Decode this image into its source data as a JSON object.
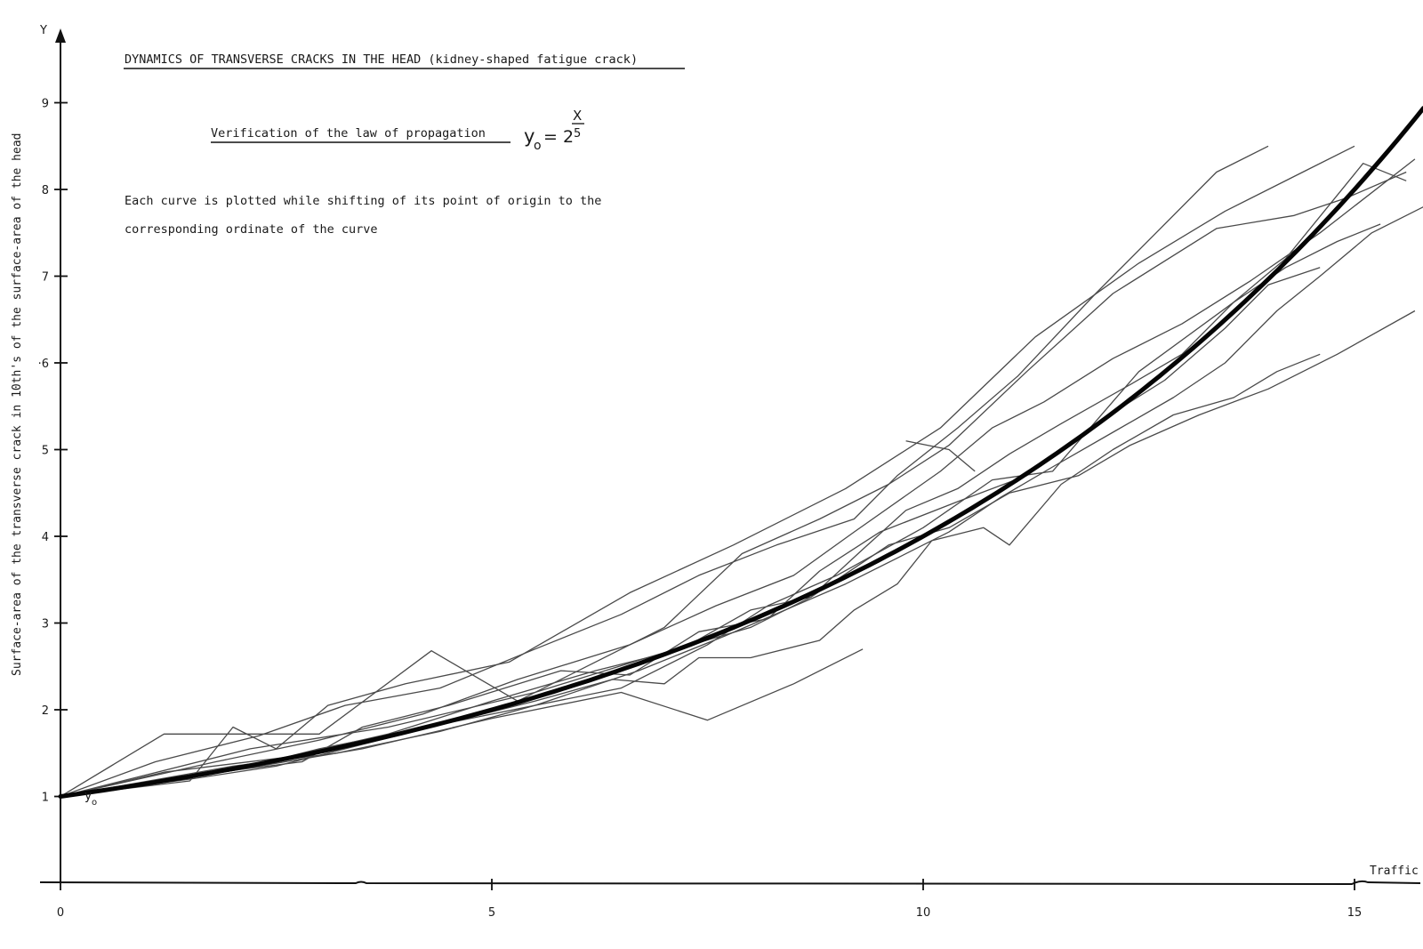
{
  "chart_data": {
    "type": "line",
    "title": "DYNAMICS OF TRANSVERSE CRACKS IN THE HEAD (kidney-shaped fatigue crack)",
    "subtitle": "Verification of the law of propagation",
    "formula": {
      "base": "y",
      "sub": "o",
      "eq": "= 2",
      "exp_num": "X",
      "exp_den": "5"
    },
    "note_lines": [
      "Each curve is plotted while shifting of its point of origin to the",
      "corresponding ordinate of the curve"
    ],
    "ylabel": "Surface-area of the transverse crack in 10th's of the surface-area of the head",
    "yaxis_letter": "Y",
    "xlabel": "Traffic",
    "origin_label": {
      "base": "y",
      "sub": "o"
    },
    "xlim": [
      0,
      15.8
    ],
    "ylim": [
      0,
      9.8
    ],
    "x_ticks": [
      0,
      5,
      10,
      15
    ],
    "x_tick_labels": [
      "0",
      "5",
      "10",
      "15"
    ],
    "y_ticks": [
      1,
      2,
      3,
      4,
      5,
      6,
      7,
      8,
      9
    ],
    "y_tick_labels": [
      "1",
      "2",
      "3",
      "4",
      "5",
      "·6",
      "7",
      "8",
      "9"
    ],
    "grid": false,
    "legend": "none",
    "law": {
      "formula": "y = 2^(x/5)",
      "x_range": [
        0,
        15.8
      ]
    },
    "series": [
      {
        "points": [
          [
            0,
            1
          ],
          [
            1.2,
            1.72
          ],
          [
            3,
            1.72
          ],
          [
            4.3,
            2.68
          ],
          [
            4.9,
            2.33
          ],
          [
            5.3,
            2.1
          ],
          [
            6.2,
            2.55
          ],
          [
            7,
            2.95
          ],
          [
            7.9,
            3.8
          ],
          [
            8.8,
            4.2
          ],
          [
            9.6,
            4.6
          ],
          [
            10.3,
            5.05
          ],
          [
            11.2,
            5.9
          ],
          [
            12.2,
            6.8
          ],
          [
            13.4,
            7.55
          ],
          [
            14.3,
            7.7
          ],
          [
            14.9,
            7.9
          ],
          [
            15.6,
            8.2
          ]
        ]
      },
      {
        "points": [
          [
            0,
            1
          ],
          [
            1.5,
            1.18
          ],
          [
            2,
            1.8
          ],
          [
            2.5,
            1.55
          ],
          [
            3.1,
            2.05
          ],
          [
            4,
            2.3
          ],
          [
            5.2,
            2.55
          ],
          [
            6.6,
            3.35
          ],
          [
            7.8,
            3.9
          ],
          [
            9.1,
            4.55
          ],
          [
            10.2,
            5.25
          ],
          [
            11.3,
            6.3
          ],
          [
            12.5,
            7.15
          ],
          [
            13.5,
            7.75
          ],
          [
            14.4,
            8.2
          ],
          [
            15,
            8.5
          ]
        ]
      },
      {
        "points": [
          [
            0,
            1
          ],
          [
            1.3,
            1.2
          ],
          [
            2,
            1.3
          ],
          [
            3,
            1.55
          ],
          [
            4,
            1.75
          ],
          [
            5,
            1.95
          ],
          [
            6.5,
            2.25
          ],
          [
            7.5,
            2.75
          ],
          [
            8.2,
            3.2
          ],
          [
            9,
            3.55
          ],
          [
            10,
            4.1
          ],
          [
            10.8,
            4.65
          ],
          [
            11.5,
            4.75
          ],
          [
            12.5,
            5.9
          ],
          [
            13.6,
            6.7
          ],
          [
            14.2,
            7.2
          ],
          [
            15.1,
            8.3
          ],
          [
            15.6,
            8.1
          ]
        ]
      },
      {
        "points": [
          [
            0,
            1
          ],
          [
            1.6,
            1.25
          ],
          [
            2.8,
            1.4
          ],
          [
            3.5,
            1.8
          ],
          [
            4.5,
            2.05
          ],
          [
            5.8,
            2.45
          ],
          [
            6.6,
            2.4
          ],
          [
            7.4,
            2.9
          ],
          [
            8.2,
            3.05
          ],
          [
            8.8,
            3.6
          ],
          [
            9.5,
            4.05
          ],
          [
            10.4,
            4.4
          ],
          [
            11.2,
            4.7
          ],
          [
            12,
            5.3
          ],
          [
            12.8,
            5.8
          ],
          [
            13.5,
            6.4
          ],
          [
            14,
            6.9
          ],
          [
            14.6,
            7.1
          ]
        ]
      },
      {
        "points": [
          [
            0,
            1
          ],
          [
            1.2,
            1.28
          ],
          [
            2.6,
            1.45
          ],
          [
            3.8,
            1.72
          ],
          [
            5,
            2.1
          ],
          [
            6.2,
            2.45
          ],
          [
            7.2,
            2.7
          ],
          [
            8,
            3.15
          ],
          [
            8.7,
            3.3
          ],
          [
            9.6,
            3.9
          ],
          [
            10.3,
            4.1
          ],
          [
            11,
            4.5
          ],
          [
            11.8,
            4.7
          ],
          [
            12.4,
            5.05
          ],
          [
            13.2,
            5.4
          ],
          [
            14,
            5.7
          ],
          [
            14.8,
            6.1
          ],
          [
            15.7,
            6.6
          ]
        ]
      },
      {
        "points": [
          [
            0,
            1
          ],
          [
            2,
            1.3
          ],
          [
            3.5,
            1.55
          ],
          [
            5,
            1.9
          ],
          [
            6.5,
            2.2
          ],
          [
            7.5,
            1.88
          ],
          [
            8.5,
            2.3
          ],
          [
            9.3,
            2.7
          ]
        ]
      },
      {
        "points": [
          [
            0,
            1
          ],
          [
            1.5,
            1.2
          ],
          [
            2.5,
            1.35
          ],
          [
            3.5,
            1.6
          ],
          [
            4.5,
            1.85
          ],
          [
            5.5,
            2.1
          ],
          [
            6.4,
            2.35
          ],
          [
            7,
            2.3
          ],
          [
            7.4,
            2.6
          ],
          [
            8,
            2.6
          ],
          [
            8.8,
            2.8
          ],
          [
            9.2,
            3.15
          ],
          [
            9.7,
            3.45
          ],
          [
            10.1,
            3.95
          ],
          [
            10.7,
            4.1
          ],
          [
            11,
            3.9
          ],
          [
            11.6,
            4.6
          ],
          [
            12.2,
            5.0
          ],
          [
            12.9,
            5.4
          ],
          [
            13.6,
            5.6
          ],
          [
            14.1,
            5.9
          ],
          [
            14.6,
            6.1
          ]
        ]
      },
      {
        "points": [
          [
            0,
            1
          ],
          [
            1.1,
            1.4
          ],
          [
            2.3,
            1.7
          ],
          [
            3.3,
            2.05
          ],
          [
            4.4,
            2.25
          ],
          [
            5.5,
            2.7
          ],
          [
            6.5,
            3.1
          ],
          [
            7.4,
            3.55
          ],
          [
            8.3,
            3.9
          ],
          [
            9.2,
            4.2
          ],
          [
            9.7,
            4.7
          ],
          [
            10.4,
            5.25
          ],
          [
            11.1,
            5.85
          ],
          [
            12,
            6.8
          ],
          [
            12.7,
            7.5
          ],
          [
            13.4,
            8.2
          ],
          [
            14,
            8.5
          ]
        ]
      },
      {
        "points": [
          [
            0,
            1
          ],
          [
            2.2,
            1.55
          ],
          [
            3.8,
            1.8
          ],
          [
            5.5,
            2.2
          ],
          [
            6.8,
            2.6
          ],
          [
            8,
            2.95
          ],
          [
            8.7,
            3.3
          ],
          [
            9.3,
            3.85
          ],
          [
            9.8,
            4.3
          ],
          [
            10.4,
            4.55
          ],
          [
            11,
            4.95
          ],
          [
            11.6,
            5.3
          ],
          [
            12.4,
            5.75
          ],
          [
            13,
            6.1
          ],
          [
            13.6,
            6.7
          ],
          [
            14.2,
            7.1
          ],
          [
            14.8,
            7.4
          ],
          [
            15.3,
            7.6
          ]
        ]
      },
      {
        "points": [
          [
            0,
            1
          ],
          [
            1.8,
            1.4
          ],
          [
            3,
            1.65
          ],
          [
            4.2,
            1.95
          ],
          [
            5.3,
            2.35
          ],
          [
            6.6,
            2.75
          ],
          [
            7.6,
            3.2
          ],
          [
            8.5,
            3.55
          ],
          [
            9.2,
            4.05
          ],
          [
            10.2,
            4.75
          ],
          [
            10.8,
            5.25
          ],
          [
            11.4,
            5.55
          ],
          [
            12.2,
            6.05
          ],
          [
            13,
            6.45
          ],
          [
            13.8,
            6.95
          ],
          [
            14.6,
            7.5
          ],
          [
            15.7,
            8.35
          ]
        ]
      },
      {
        "points": [
          [
            9.8,
            5.1
          ],
          [
            10.3,
            5.0
          ],
          [
            10.6,
            4.75
          ]
        ]
      },
      {
        "points": [
          [
            0,
            1
          ],
          [
            2,
            1.35
          ],
          [
            3.2,
            1.5
          ],
          [
            4.4,
            1.75
          ],
          [
            5.5,
            2.05
          ],
          [
            6.7,
            2.45
          ],
          [
            7.7,
            2.85
          ],
          [
            8.4,
            3.15
          ],
          [
            9.1,
            3.45
          ],
          [
            9.7,
            3.75
          ],
          [
            10.3,
            4.05
          ],
          [
            10.9,
            4.45
          ],
          [
            11.5,
            4.8
          ],
          [
            12.2,
            5.2
          ],
          [
            12.9,
            5.6
          ],
          [
            13.5,
            6.0
          ],
          [
            14.1,
            6.6
          ],
          [
            14.6,
            7.0
          ],
          [
            15.2,
            7.5
          ],
          [
            15.8,
            7.8
          ]
        ]
      }
    ]
  }
}
